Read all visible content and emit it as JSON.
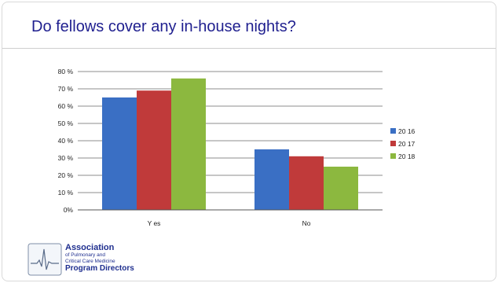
{
  "slide": {
    "title": "Do fellows cover any in-house nights?"
  },
  "logo": {
    "line1": "Association",
    "line2": "of Pulmonary and",
    "line3": "Critical Care Medicine",
    "line4": "Program Directors",
    "icon": "ecg-waveform-icon"
  },
  "chart_data": {
    "type": "bar",
    "title": "",
    "xlabel": "",
    "ylabel": "",
    "categories": [
      "Yes",
      "No"
    ],
    "series": [
      {
        "name": "20 16",
        "values": [
          65,
          35
        ],
        "color": "#3a6fc4"
      },
      {
        "name": "20 17",
        "values": [
          69,
          31
        ],
        "color": "#c03a3a"
      },
      {
        "name": "20 18",
        "values": [
          76,
          25
        ],
        "color": "#8cb83f"
      }
    ],
    "ylim": [
      0,
      80
    ],
    "yticks": [
      0,
      10,
      20,
      30,
      40,
      50,
      60,
      70,
      80
    ],
    "ytick_labels": [
      "0%",
      "10 %",
      "20 %",
      "30 %",
      "40 %",
      "50 %",
      "60 %",
      "70 %",
      "80 %"
    ],
    "category_labels": [
      "Y es",
      "No"
    ],
    "grid": true,
    "legend": "right"
  }
}
